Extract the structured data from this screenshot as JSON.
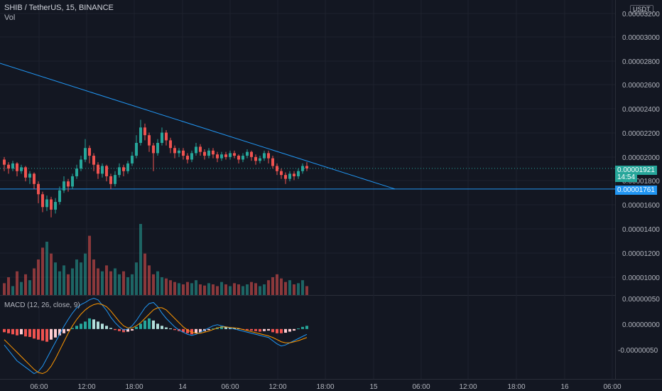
{
  "header": {
    "symbol": "SHIB / TetherUS, 15, BINANCE",
    "volume_label": "Vol",
    "macd_label": "MACD (12, 26, close, 9)",
    "currency_badge": "USDT"
  },
  "price_axis": [
    "0.00003200",
    "0.00003000",
    "0.00002800",
    "0.00002600",
    "0.00002400",
    "0.00002200",
    "0.00002000",
    "0.00001800",
    "0.00001600",
    "0.00001400",
    "0.00001200",
    "0.00001000"
  ],
  "macd_axis": [
    "0.00000050",
    "0.00000000",
    "-0.00000050"
  ],
  "tags": {
    "last_price": "0.00001921",
    "countdown": "14:54",
    "horizontal_line": "0.00001761"
  },
  "time_axis": [
    "06:00",
    "12:00",
    "18:00",
    "14",
    "06:00",
    "12:00",
    "18:00",
    "15",
    "06:00",
    "12:00",
    "18:00",
    "16",
    "06:00"
  ],
  "colors": {
    "background": "#131722",
    "bull": "#26a69a",
    "bear": "#ef5350",
    "trendline": "#2196f3",
    "macd_line": "#2196f3",
    "signal_line": "#ff9800"
  },
  "chart_data": {
    "type": "candlestick",
    "price_ylim": [
      9.35e-06,
      3.233e-05
    ],
    "last_price": 1.921e-05,
    "horizontal_line": 1.761e-05,
    "candles": [
      [
        1.99,
        1.95,
        2.01,
        1.9
      ],
      [
        1.95,
        1.92,
        1.97,
        1.88
      ],
      [
        1.92,
        1.96,
        1.98,
        1.9
      ],
      [
        1.96,
        1.9,
        1.97,
        1.86
      ],
      [
        1.9,
        1.93,
        1.95,
        1.88
      ],
      [
        1.93,
        1.85,
        1.94,
        1.82
      ],
      [
        1.85,
        1.88,
        1.9,
        1.8
      ],
      [
        1.88,
        1.8,
        1.89,
        1.76
      ],
      [
        1.8,
        1.72,
        1.82,
        1.65
      ],
      [
        1.72,
        1.62,
        1.74,
        1.58
      ],
      [
        1.62,
        1.68,
        1.71,
        1.59
      ],
      [
        1.68,
        1.6,
        1.7,
        1.54
      ],
      [
        1.6,
        1.66,
        1.69,
        1.57
      ],
      [
        1.66,
        1.75,
        1.78,
        1.64
      ],
      [
        1.75,
        1.82,
        1.86,
        1.73
      ],
      [
        1.82,
        1.78,
        1.84,
        1.74
      ],
      [
        1.78,
        1.86,
        1.88,
        1.76
      ],
      [
        1.86,
        1.92,
        1.95,
        1.84
      ],
      [
        1.92,
        1.99,
        2.02,
        1.9
      ],
      [
        1.99,
        2.08,
        2.15,
        1.97
      ],
      [
        2.08,
        2.02,
        2.1,
        1.96
      ],
      [
        2.02,
        1.95,
        2.04,
        1.9
      ],
      [
        1.95,
        1.88,
        1.97,
        1.84
      ],
      [
        1.88,
        1.94,
        1.96,
        1.85
      ],
      [
        1.94,
        1.86,
        1.95,
        1.82
      ],
      [
        1.86,
        1.8,
        1.88,
        1.76
      ],
      [
        1.8,
        1.87,
        1.9,
        1.78
      ],
      [
        1.87,
        1.93,
        1.96,
        1.85
      ],
      [
        1.93,
        1.9,
        1.95,
        1.86
      ],
      [
        1.9,
        1.96,
        1.98,
        1.88
      ],
      [
        1.96,
        2.02,
        2.05,
        1.94
      ],
      [
        2.02,
        2.12,
        2.18,
        2.0
      ],
      [
        2.12,
        2.24,
        2.3,
        2.1
      ],
      [
        2.24,
        2.18,
        2.27,
        2.14
      ],
      [
        2.18,
        2.1,
        2.2,
        2.05
      ],
      [
        2.1,
        2.04,
        2.12,
        1.9
      ],
      [
        2.04,
        2.12,
        2.15,
        2.02
      ],
      [
        2.12,
        2.2,
        2.24,
        2.1
      ],
      [
        2.2,
        2.14,
        2.22,
        2.1
      ],
      [
        2.14,
        2.08,
        2.16,
        2.04
      ],
      [
        2.08,
        2.04,
        2.1,
        2.0
      ],
      [
        2.04,
        2.06,
        2.08,
        2.01
      ],
      [
        2.06,
        2.02,
        2.08,
        1.99
      ],
      [
        2.02,
        1.99,
        2.04,
        1.96
      ],
      [
        1.99,
        2.04,
        2.06,
        1.97
      ],
      [
        2.04,
        2.09,
        2.12,
        2.02
      ],
      [
        2.09,
        2.05,
        2.11,
        2.02
      ],
      [
        2.05,
        2.02,
        2.07,
        1.99
      ],
      [
        2.02,
        2.06,
        2.08,
        2.0
      ],
      [
        2.06,
        2.03,
        2.08,
        2.0
      ],
      [
        2.03,
        2.0,
        2.05,
        1.97
      ],
      [
        2.0,
        2.03,
        2.05,
        1.98
      ],
      [
        2.03,
        2.01,
        2.05,
        1.99
      ],
      [
        2.01,
        2.04,
        2.06,
        1.99
      ],
      [
        2.04,
        2.02,
        2.06,
        2.0
      ],
      [
        2.02,
        1.99,
        2.03,
        1.96
      ],
      [
        1.99,
        2.02,
        2.04,
        1.97
      ],
      [
        2.02,
        2.05,
        2.07,
        2.0
      ],
      [
        2.05,
        2.01,
        2.06,
        1.98
      ],
      [
        2.01,
        1.98,
        2.03,
        1.95
      ],
      [
        1.98,
        2.0,
        2.02,
        1.96
      ],
      [
        2.0,
        2.04,
        2.06,
        1.98
      ],
      [
        2.04,
        2.0,
        2.06,
        1.96
      ],
      [
        2.0,
        1.94,
        2.02,
        1.92
      ],
      [
        1.94,
        1.9,
        1.96,
        1.87
      ],
      [
        1.9,
        1.87,
        1.92,
        1.84
      ],
      [
        1.87,
        1.84,
        1.89,
        1.8
      ],
      [
        1.84,
        1.88,
        1.9,
        1.82
      ],
      [
        1.88,
        1.86,
        1.9,
        1.83
      ],
      [
        1.86,
        1.9,
        1.92,
        1.84
      ],
      [
        1.9,
        1.94,
        1.96,
        1.88
      ],
      [
        1.94,
        1.921,
        1.97,
        1.9
      ]
    ],
    "volume_ylim": [
      0,
      120
    ],
    "volume": [
      20,
      30,
      15,
      40,
      22,
      35,
      25,
      45,
      60,
      80,
      90,
      70,
      55,
      40,
      50,
      35,
      45,
      60,
      55,
      70,
      100,
      60,
      45,
      40,
      50,
      40,
      45,
      35,
      40,
      30,
      35,
      55,
      120,
      70,
      50,
      35,
      40,
      30,
      28,
      25,
      22,
      20,
      18,
      22,
      20,
      25,
      18,
      16,
      20,
      18,
      15,
      22,
      18,
      15,
      20,
      18,
      15,
      18,
      22,
      20,
      15,
      18,
      25,
      30,
      35,
      28,
      22,
      25,
      18,
      20,
      25,
      15
    ],
    "macd_ylim": [
      -9e-07,
      6e-07
    ],
    "macd_hist": [
      -0.06,
      -0.08,
      -0.1,
      -0.12,
      -0.1,
      -0.14,
      -0.15,
      -0.18,
      -0.2,
      -0.22,
      -0.24,
      -0.2,
      -0.16,
      -0.12,
      -0.08,
      -0.04,
      0.02,
      0.06,
      0.1,
      0.14,
      0.2,
      0.18,
      0.14,
      0.1,
      0.06,
      0.02,
      -0.02,
      -0.04,
      -0.06,
      -0.05,
      -0.03,
      0.04,
      0.1,
      0.16,
      0.2,
      0.16,
      0.1,
      0.06,
      0.03,
      0.01,
      -0.02,
      -0.04,
      -0.06,
      -0.08,
      -0.1,
      -0.08,
      -0.06,
      -0.04,
      -0.02,
      0.01,
      0.03,
      0.05,
      0.04,
      0.03,
      0.02,
      0.01,
      -0.01,
      -0.02,
      -0.03,
      -0.04,
      -0.05,
      -0.04,
      -0.03,
      -0.06,
      -0.08,
      -0.08,
      -0.07,
      -0.05,
      -0.03,
      0.01,
      0.04,
      0.06
    ],
    "macd_line": [
      -0.3,
      -0.4,
      -0.5,
      -0.6,
      -0.66,
      -0.72,
      -0.78,
      -0.84,
      -0.8,
      -0.7,
      -0.55,
      -0.4,
      -0.25,
      -0.1,
      0.05,
      0.18,
      0.3,
      0.4,
      0.46,
      0.5,
      0.55,
      0.58,
      0.55,
      0.45,
      0.35,
      0.22,
      0.12,
      0.04,
      -0.02,
      0.0,
      0.06,
      0.16,
      0.28,
      0.4,
      0.48,
      0.5,
      0.42,
      0.3,
      0.2,
      0.12,
      0.04,
      -0.02,
      -0.06,
      -0.1,
      -0.12,
      -0.1,
      -0.06,
      -0.02,
      0.02,
      0.06,
      0.08,
      0.06,
      0.04,
      0.02,
      0.0,
      -0.02,
      -0.04,
      -0.06,
      -0.08,
      -0.1,
      -0.12,
      -0.14,
      -0.16,
      -0.22,
      -0.28,
      -0.32,
      -0.3,
      -0.26,
      -0.22,
      -0.18,
      -0.14,
      -0.1
    ],
    "signal_line": [
      -0.2,
      -0.28,
      -0.36,
      -0.44,
      -0.52,
      -0.6,
      -0.68,
      -0.76,
      -0.82,
      -0.84,
      -0.8,
      -0.7,
      -0.56,
      -0.4,
      -0.24,
      -0.08,
      0.06,
      0.18,
      0.28,
      0.36,
      0.42,
      0.46,
      0.48,
      0.46,
      0.42,
      0.34,
      0.24,
      0.14,
      0.06,
      0.02,
      0.02,
      0.06,
      0.12,
      0.2,
      0.28,
      0.36,
      0.4,
      0.4,
      0.36,
      0.28,
      0.2,
      0.12,
      0.04,
      -0.02,
      -0.06,
      -0.08,
      -0.08,
      -0.06,
      -0.04,
      -0.01,
      0.02,
      0.04,
      0.04,
      0.03,
      0.02,
      0.01,
      -0.01,
      -0.03,
      -0.05,
      -0.07,
      -0.09,
      -0.11,
      -0.13,
      -0.16,
      -0.2,
      -0.24,
      -0.26,
      -0.26,
      -0.24,
      -0.22,
      -0.19,
      -0.16
    ]
  }
}
